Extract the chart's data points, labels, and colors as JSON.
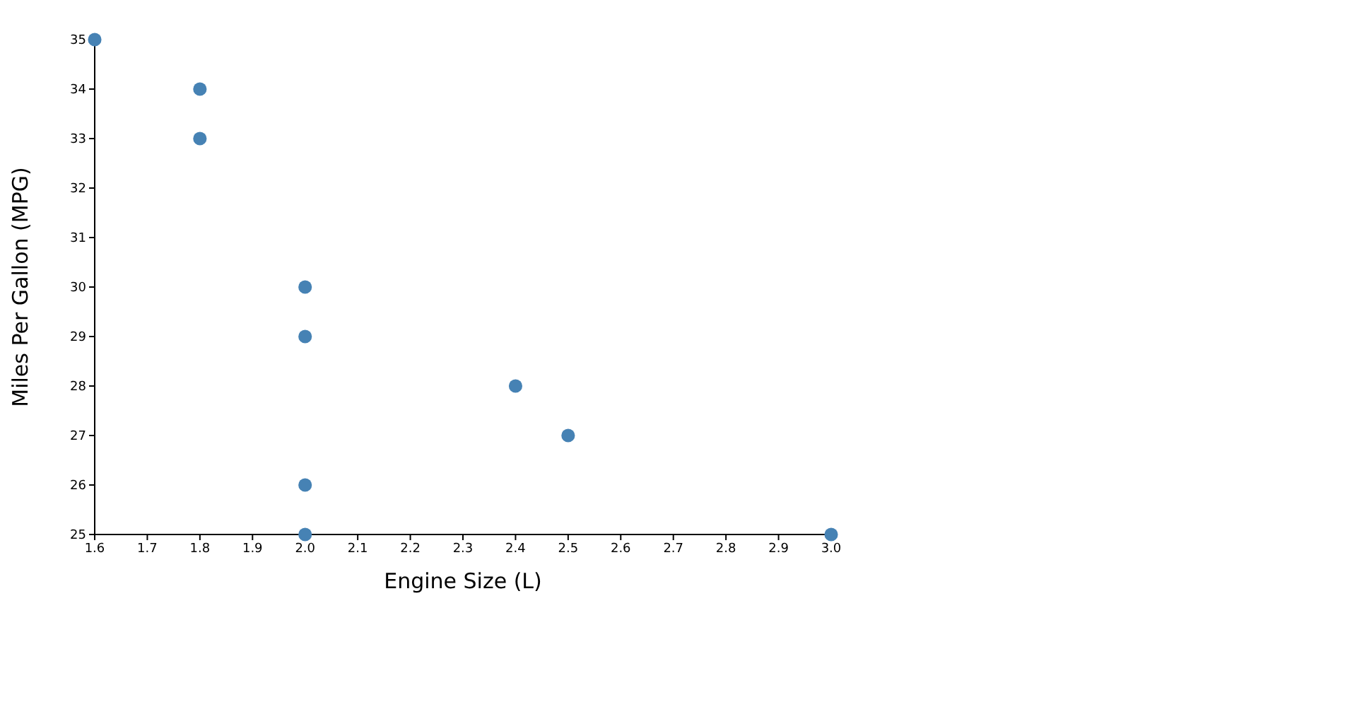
{
  "chart_data": {
    "type": "scatter",
    "xlabel": "Engine Size (L)",
    "ylabel": "Miles Per Gallon (MPG)",
    "x": [
      1.6,
      1.8,
      1.8,
      2.0,
      2.0,
      2.4,
      2.5,
      2.0,
      2.0,
      3.0
    ],
    "values": [
      35,
      34,
      33,
      30,
      29,
      28,
      27,
      26,
      25,
      25
    ],
    "color": "#4682b4",
    "marker": "circle",
    "xlim": [
      1.6,
      3.0
    ],
    "xticks": [
      1.6,
      1.7,
      1.8,
      1.9,
      {
        "value": 2.0,
        "label": "2.0"
      },
      2.1,
      2.2,
      2.3,
      2.4,
      2.5,
      2.6,
      2.7,
      2.8,
      2.9,
      {
        "value": 3.0,
        "label": "3.0"
      }
    ],
    "ylim": [
      25,
      35
    ],
    "yticks": [
      25,
      26,
      27,
      28,
      29,
      30,
      31,
      32,
      33,
      34,
      35
    ]
  }
}
